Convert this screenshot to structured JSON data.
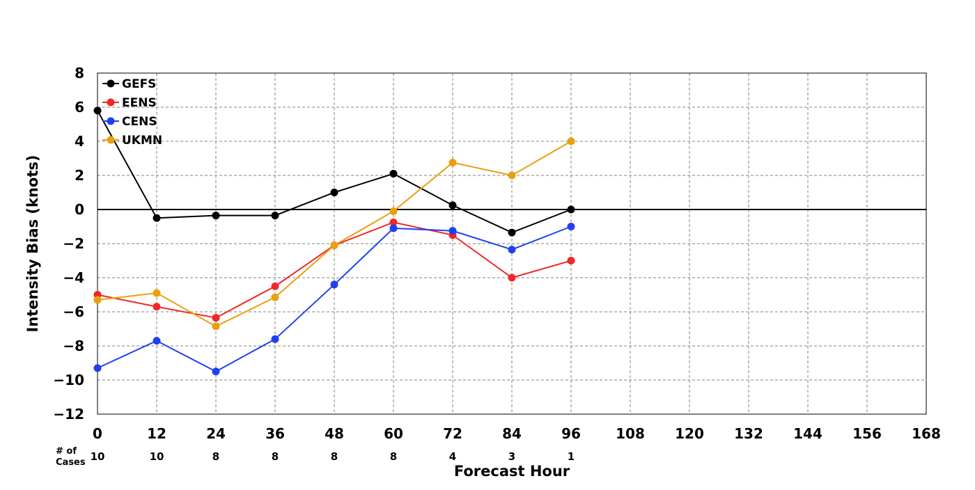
{
  "chart_data": {
    "type": "line",
    "title": "",
    "xlabel": "Forecast Hour",
    "ylabel": "Intensity Bias (knots)",
    "xlim": [
      0,
      168
    ],
    "ylim": [
      -12,
      8
    ],
    "x_ticks": [
      0,
      12,
      24,
      36,
      48,
      60,
      72,
      84,
      96,
      108,
      120,
      132,
      144,
      156,
      168
    ],
    "y_ticks": [
      8,
      6,
      4,
      2,
      0,
      -2,
      -4,
      -6,
      -8,
      -10,
      -12
    ],
    "grid": true,
    "zero_line": true,
    "legend_position": "top-left",
    "x": [
      0,
      12,
      24,
      36,
      48,
      60,
      72,
      84,
      96
    ],
    "series": [
      {
        "name": "GEFS",
        "color": "#000000",
        "values": [
          5.8,
          -0.5,
          -0.35,
          -0.35,
          1.0,
          2.1,
          0.25,
          -1.35,
          0.0
        ]
      },
      {
        "name": "EENS",
        "color": "#f02828",
        "values": [
          -5.0,
          -5.7,
          -6.35,
          -4.5,
          -2.1,
          -0.75,
          -1.5,
          -4.0,
          -3.0
        ]
      },
      {
        "name": "CENS",
        "color": "#2040f0",
        "values": [
          -9.3,
          -7.7,
          -9.5,
          -7.6,
          -4.4,
          -1.1,
          -1.25,
          -2.35,
          -1.0
        ]
      },
      {
        "name": "UKMN",
        "color": "#e8a010",
        "values": [
          -5.3,
          -4.9,
          -6.85,
          -5.15,
          -2.1,
          -0.1,
          2.75,
          2.0,
          4.0
        ]
      }
    ],
    "cases_label_line1": "# of",
    "cases_label_line2": "Cases",
    "cases": [
      10,
      10,
      8,
      8,
      8,
      8,
      4,
      3,
      1
    ]
  }
}
